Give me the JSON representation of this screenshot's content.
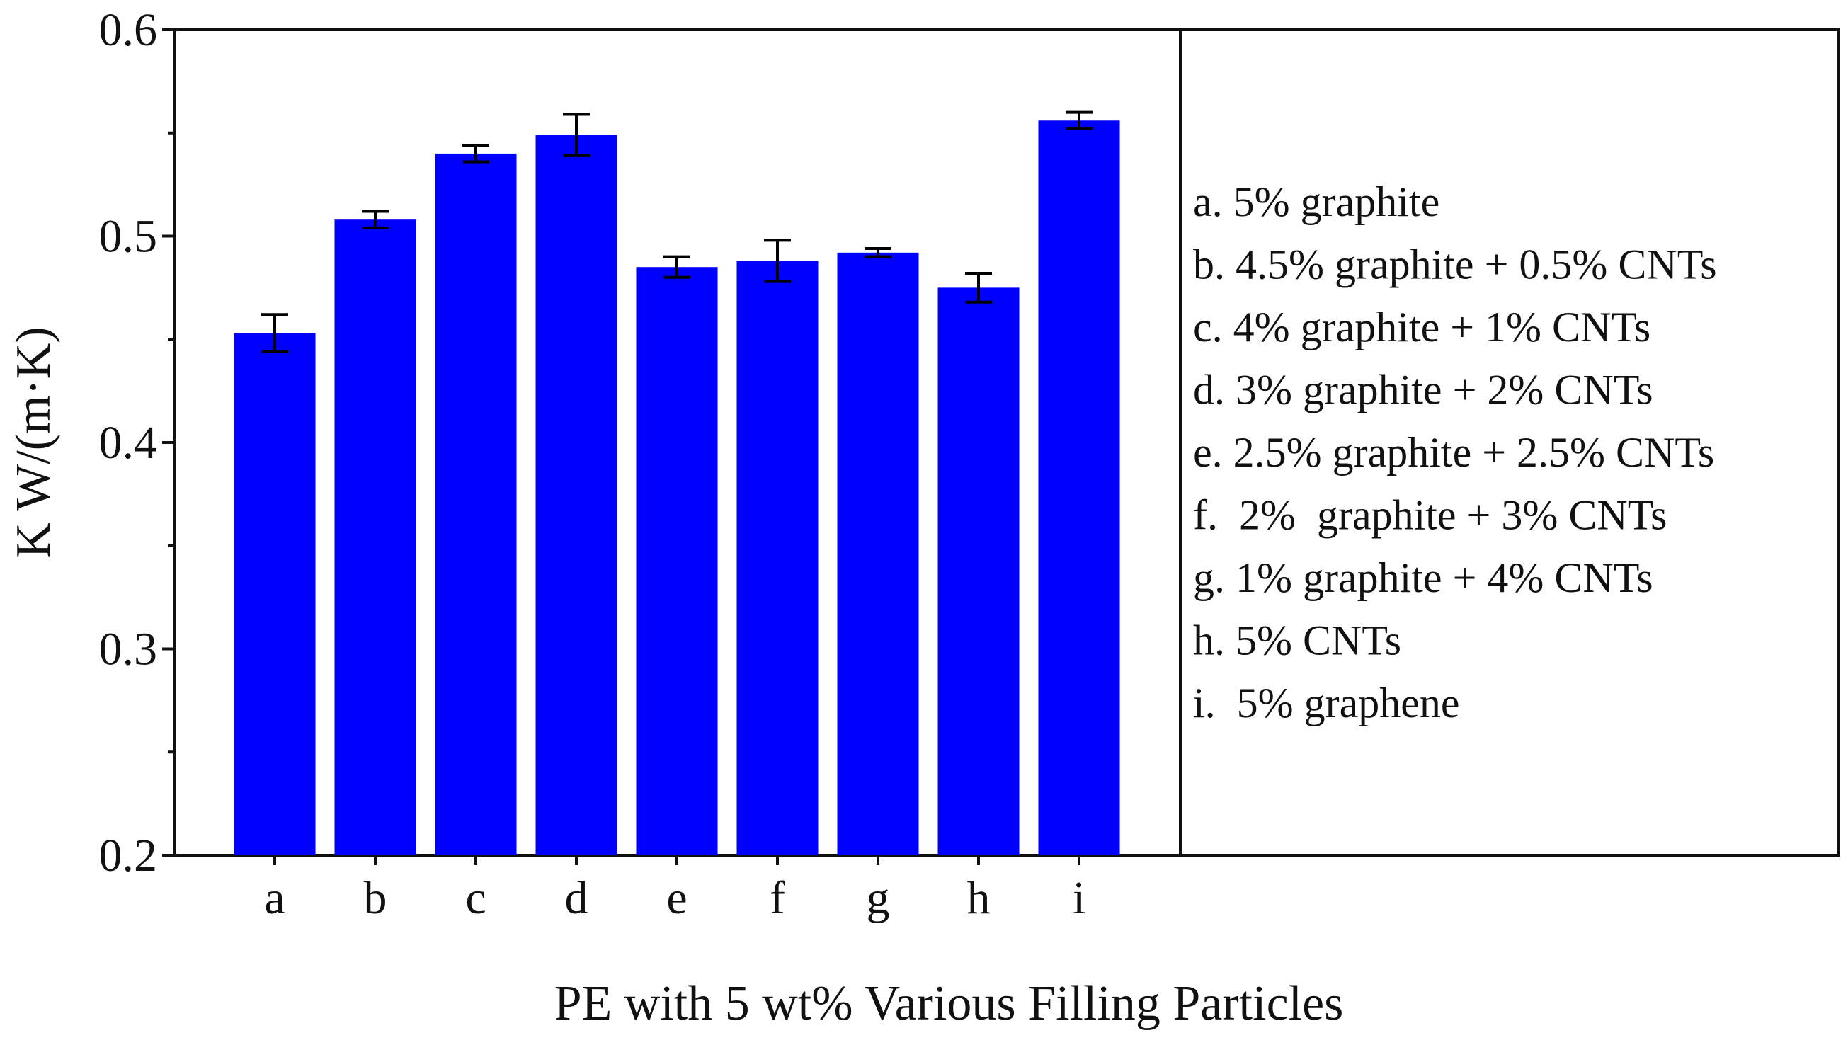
{
  "chart_data": {
    "type": "bar",
    "title": "",
    "xlabel": "PE with 5 wt% Various Filling Particles",
    "ylabel": "K  W/(m·K)",
    "ylim": [
      0.2,
      0.6
    ],
    "yticks": [
      0.2,
      0.3,
      0.4,
      0.5,
      0.6
    ],
    "ytick_labels": [
      "0.2",
      "0.3",
      "0.4",
      "0.5",
      "0.6"
    ],
    "categories": [
      "a",
      "b",
      "c",
      "d",
      "e",
      "f",
      "g",
      "h",
      "i"
    ],
    "values": [
      0.453,
      0.508,
      0.54,
      0.549,
      0.485,
      0.488,
      0.492,
      0.475,
      0.556
    ],
    "errors": [
      0.009,
      0.004,
      0.004,
      0.01,
      0.005,
      0.01,
      0.002,
      0.007,
      0.004
    ],
    "bar_color": "#0000ff",
    "error_color": "#000000",
    "grid": false,
    "legend_position": "right",
    "legend": [
      "a. 5% graphite",
      "b. 4.5% graphite + 0.5% CNTs",
      "c. 4% graphite + 1% CNTs",
      "d. 3% graphite + 2% CNTs",
      "e. 2.5% graphite + 2.5% CNTs",
      "f.  2%  graphite + 3% CNTs",
      "g. 1% graphite + 4% CNTs",
      "h. 5% CNTs",
      "i.  5% graphene"
    ]
  }
}
